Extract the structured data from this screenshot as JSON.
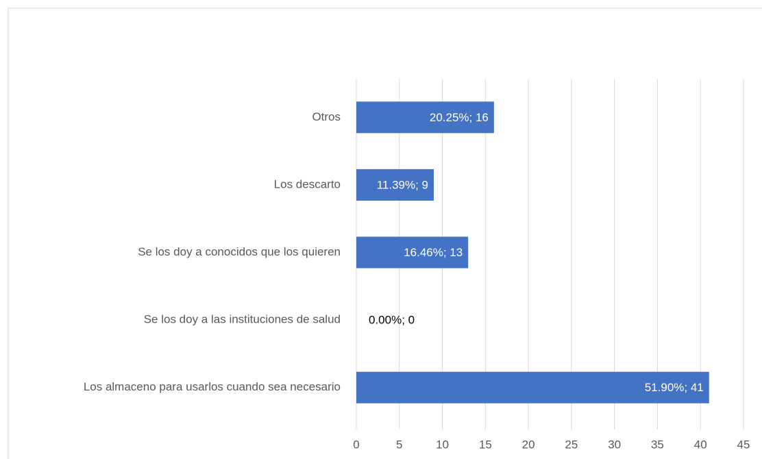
{
  "chart_data": {
    "type": "bar",
    "orientation": "horizontal",
    "categories": [
      "Otros",
      "Los descarto",
      "Se los doy a conocidos que los quieren",
      "Se los doy a las instituciones de salud",
      "Los almaceno para usarlos cuando sea necesario"
    ],
    "values": [
      16,
      9,
      13,
      0,
      41
    ],
    "value_labels": [
      "20.25%; 16",
      "11.39%; 9",
      "16.46%; 13",
      "0.00%; 0",
      "51.90%; 41"
    ],
    "color": "#4472c4",
    "xlim": [
      0,
      45
    ],
    "xticks": [
      0,
      5,
      10,
      15,
      20,
      25,
      30,
      35,
      40,
      45
    ],
    "grid": true
  }
}
